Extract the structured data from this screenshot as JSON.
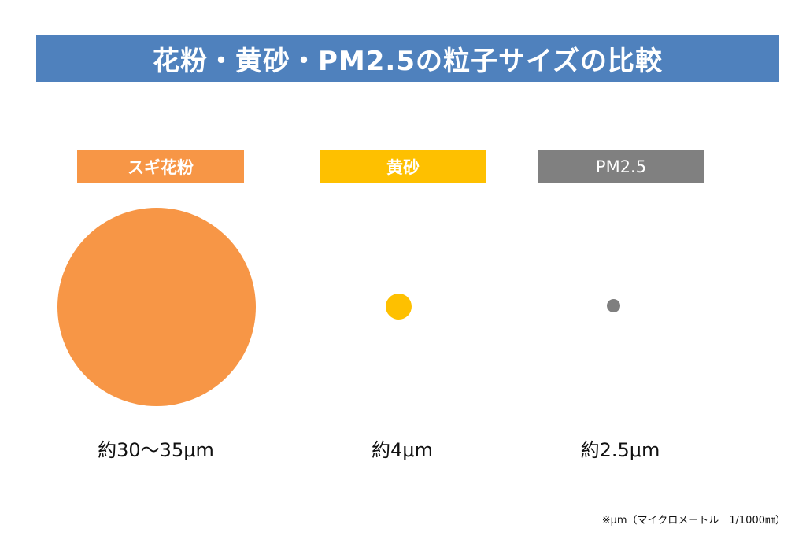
{
  "title": "花粉・黄砂・PM2.5の粒子サイズの比較",
  "particles": [
    {
      "label": "スギ花粉",
      "size_text": "約30〜35μm",
      "color": "#f79646"
    },
    {
      "label": "黄砂",
      "size_text": "約4μm",
      "color": "#fec000"
    },
    {
      "label": "PM2.5",
      "size_text": "約2.5μm",
      "color": "#7f7f7f"
    }
  ],
  "note": "※μm（マイクロメートル　1/1000㎜）",
  "colors": {
    "title_bg": "#4f81bd"
  }
}
